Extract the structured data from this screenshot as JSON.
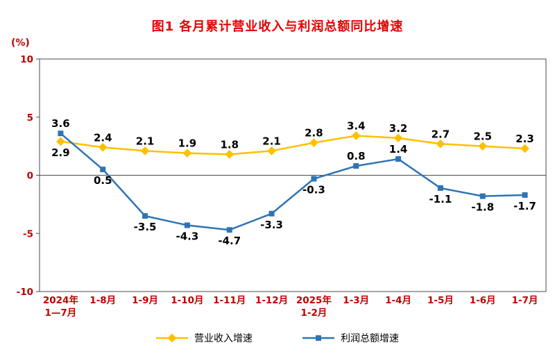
{
  "title": "图1  各月累计营业收入与利润总额同比增速",
  "colors": {
    "title": "#e60000",
    "axis_text": "#c00000",
    "axis_line": "#4a4a4a",
    "data_label": "#000000"
  },
  "chart_data": {
    "type": "line",
    "title": "图1  各月累计营业收入与利润总额同比增速",
    "ylabel": "(%)",
    "ylim": [
      -10,
      10
    ],
    "yticks": [
      10,
      5,
      0,
      -5,
      -10
    ],
    "grid": false,
    "legend_position": "bottom",
    "categories": [
      "2024年\n1—7月",
      "1-8月",
      "1-9月",
      "1-10月",
      "1-11月",
      "1-12月",
      "2025年\n1-2月",
      "1-3月",
      "1-4月",
      "1-5月",
      "1-6月",
      "1-7月"
    ],
    "series": [
      {
        "name": "营业收入增速",
        "color": "#ffc000",
        "marker": "diamond",
        "values": [
          2.9,
          2.4,
          2.1,
          1.9,
          1.8,
          2.1,
          2.8,
          3.4,
          3.2,
          2.7,
          2.5,
          2.3
        ],
        "label_side": [
          "below",
          "above",
          "above",
          "above",
          "above",
          "above",
          "above",
          "above",
          "above",
          "above",
          "above",
          "above"
        ]
      },
      {
        "name": "利润总额增速",
        "color": "#2e74b5",
        "marker": "square",
        "values": [
          3.6,
          0.5,
          -3.5,
          -4.3,
          -4.7,
          -3.3,
          -0.3,
          0.8,
          1.4,
          -1.1,
          -1.8,
          -1.7
        ],
        "label_side": [
          "above",
          "below",
          "below",
          "below",
          "below",
          "below",
          "below",
          "above",
          "above",
          "below",
          "below",
          "below"
        ]
      }
    ]
  }
}
